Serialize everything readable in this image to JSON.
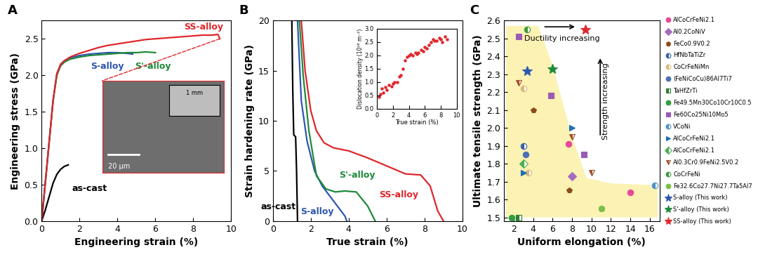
{
  "chart_data": [
    {
      "type": "line",
      "title": "A",
      "x_label": "Engineering strain (%)",
      "y_label": "Engineering stress (GPa)",
      "xlim": [
        0,
        10
      ],
      "ylim": [
        0,
        2.75
      ],
      "xticks": [
        0,
        2,
        4,
        6,
        8,
        10
      ],
      "yticks": [
        {
          "value": 0,
          "label": "0.0"
        },
        0.5,
        {
          "value": 1,
          "label": "1.0"
        },
        1.5,
        {
          "value": 2,
          "label": "2.0"
        },
        2.5
      ],
      "series": [
        {
          "name": "as-cast",
          "color": "#000000",
          "label_at": [
            1.6,
            0.45
          ],
          "x": [
            0,
            0.2,
            0.4,
            0.6,
            0.8,
            1.0,
            1.2,
            1.4
          ],
          "values": [
            0,
            0.16,
            0.34,
            0.52,
            0.64,
            0.71,
            0.75,
            0.77
          ]
        },
        {
          "name": "S-alloy",
          "color": "#2f56b0",
          "label_at": [
            2.6,
            2.12
          ],
          "x": [
            0,
            0.2,
            0.4,
            0.6,
            0.8,
            1.0,
            1.2,
            1.5,
            2.0,
            2.5,
            3.0,
            3.5,
            4.0,
            4.5,
            4.8
          ],
          "values": [
            0,
            0.55,
            1.1,
            1.65,
            2.02,
            2.15,
            2.2,
            2.24,
            2.27,
            2.29,
            2.3,
            2.31,
            2.31,
            2.3,
            2.29
          ]
        },
        {
          "name": "S'-alloy",
          "color": "#1f8a3a",
          "label_at": [
            4.9,
            2.12
          ],
          "x": [
            0,
            0.2,
            0.4,
            0.6,
            0.8,
            1.0,
            1.2,
            1.5,
            2.0,
            2.5,
            3.0,
            3.5,
            4.0,
            4.5,
            5.0,
            5.5,
            6.0
          ],
          "values": [
            0,
            0.55,
            1.1,
            1.65,
            2.0,
            2.13,
            2.18,
            2.22,
            2.25,
            2.27,
            2.28,
            2.29,
            2.3,
            2.31,
            2.31,
            2.32,
            2.31
          ]
        },
        {
          "name": "SS-alloy",
          "color": "#e0262b",
          "label_at": [
            7.5,
            2.66
          ],
          "x": [
            0,
            0.2,
            0.4,
            0.6,
            0.8,
            1.0,
            1.2,
            1.5,
            2.0,
            2.5,
            3.0,
            3.5,
            4.0,
            4.5,
            5.0,
            5.5,
            6.0,
            6.5,
            7.0,
            7.5,
            8.0,
            8.5,
            9.0,
            9.3,
            9.4
          ],
          "values": [
            0,
            0.55,
            1.1,
            1.65,
            2.02,
            2.15,
            2.2,
            2.25,
            2.3,
            2.34,
            2.38,
            2.41,
            2.43,
            2.45,
            2.47,
            2.49,
            2.5,
            2.51,
            2.52,
            2.53,
            2.54,
            2.55,
            2.55,
            2.56,
            2.5
          ]
        }
      ],
      "inset": {
        "type": "image",
        "labels": [
          "20 μm",
          "1 mm"
        ]
      }
    },
    {
      "type": "line",
      "title": "B",
      "x_label": "True strain (%)",
      "y_label": "Strain hardening rate (GPa)",
      "xlim": [
        0,
        10
      ],
      "ylim": [
        0,
        20
      ],
      "xticks": [
        0,
        2,
        4,
        6,
        8,
        10
      ],
      "yticks": [
        0,
        5,
        10,
        15,
        20
      ],
      "series": [
        {
          "name": "as-cast",
          "color": "#000000",
          "label_at": [
            -0.65,
            1.4
          ],
          "x": [
            1.0,
            1.05,
            1.1,
            1.15,
            1.2,
            1.25,
            1.3
          ],
          "values": [
            20,
            13,
            8.6,
            8.5,
            8.4,
            5,
            0
          ]
        },
        {
          "name": "S-alloy",
          "color": "#2f56b0",
          "label_at": [
            1.45,
            0.9
          ],
          "x": [
            1.3,
            1.5,
            1.8,
            2.2,
            2.6,
            3.0,
            3.4,
            3.8,
            3.9
          ],
          "values": [
            20,
            12,
            8,
            5,
            3.5,
            2.5,
            1.5,
            0.5,
            0
          ]
        },
        {
          "name": "S'-alloy",
          "color": "#1f8a3a",
          "label_at": [
            3.5,
            4.6
          ],
          "x": [
            1.4,
            1.6,
            1.9,
            2.3,
            2.8,
            3.3,
            3.8,
            4.4,
            5.0,
            5.4
          ],
          "values": [
            20,
            14.5,
            9,
            4.5,
            3.2,
            2.9,
            3.0,
            2.9,
            1.5,
            0
          ]
        },
        {
          "name": "SS-alloy",
          "color": "#e0262b",
          "label_at": [
            5.6,
            2.6
          ],
          "x": [
            1.5,
            1.7,
            2.0,
            2.3,
            2.7,
            3.2,
            4.0,
            5.0,
            6.0,
            7.0,
            7.8,
            8.3,
            8.7,
            9.0
          ],
          "values": [
            20,
            15,
            11,
            9,
            7.8,
            7.3,
            7.0,
            6.3,
            5.5,
            4.7,
            4.6,
            3.5,
            1.0,
            0
          ]
        }
      ],
      "inset": {
        "type": "scatter",
        "x_label": "True strain (%)",
        "y_label": "Dislocation density (10¹⁶ m⁻²)",
        "xlim": [
          0,
          10
        ],
        "ylim": [
          0,
          3
        ],
        "xticks": [
          0,
          2,
          4,
          6,
          8,
          10
        ],
        "yticks": [
          {
            "value": 0,
            "label": "0.0"
          },
          0.5,
          {
            "value": 1,
            "label": "1.0"
          },
          1.5,
          {
            "value": 2,
            "label": "2.0"
          },
          2.5,
          {
            "value": 3,
            "label": "3.0"
          }
        ],
        "color": "#e0262b",
        "x": [
          0.2,
          0.4,
          0.6,
          0.8,
          1.0,
          1.2,
          1.5,
          1.8,
          2.0,
          2.2,
          2.5,
          2.8,
          3.0,
          3.2,
          3.5,
          3.8,
          4.0,
          4.2,
          4.5,
          4.8,
          5.0,
          5.2,
          5.5,
          5.8,
          6.0,
          6.2,
          6.5,
          6.8,
          7.0,
          7.2,
          7.5,
          7.8,
          8.0,
          8.2,
          8.5,
          8.8
        ],
        "values": [
          0.45,
          0.55,
          0.75,
          0.6,
          0.8,
          0.7,
          0.9,
          0.85,
          0.95,
          1.0,
          1.0,
          1.2,
          1.25,
          1.5,
          1.8,
          1.95,
          2.0,
          2.05,
          2.0,
          2.1,
          2.05,
          2.1,
          2.2,
          2.15,
          2.3,
          2.25,
          2.4,
          2.5,
          2.6,
          2.55,
          2.55,
          2.65,
          2.6,
          2.5,
          2.7,
          2.6
        ]
      }
    },
    {
      "type": "scatter",
      "title": "C",
      "x_label": "Uniform elongation (%)",
      "y_label": "Ultimate tensile strength (GPa)",
      "xlim": [
        1,
        17
      ],
      "ylim": [
        1.48,
        2.6
      ],
      "xticks": [
        2,
        4,
        6,
        8,
        10,
        12,
        14,
        16
      ],
      "yticks": [
        1.5,
        1.6,
        1.7,
        1.8,
        1.9,
        {
          "value": 2,
          "label": "2.0"
        },
        2.1,
        2.2,
        2.3,
        2.4,
        2.5,
        2.6
      ],
      "legend": "right",
      "shaded_region": {
        "color": "#fbf2b4",
        "x": [
          1.2,
          4.5,
          6.0,
          8.0,
          9.5,
          12.0,
          16.8,
          16.8,
          1.2
        ],
        "y": [
          2.57,
          2.57,
          2.35,
          1.95,
          1.72,
          1.69,
          1.68,
          1.5,
          1.5
        ]
      },
      "annotations": [
        {
          "text": "Ductility increasing",
          "x": 7.0,
          "y": 2.5,
          "arrow_from": [
            5.0,
            2.565
          ],
          "arrow_to": [
            8.5,
            2.565
          ]
        },
        {
          "text": "Strength increasing",
          "x": 11.5,
          "y": 2.15,
          "orientation": "vertical",
          "arrow_from": [
            10.9,
            1.95
          ],
          "arrow_to": [
            10.9,
            2.4
          ]
        }
      ],
      "series": [
        {
          "name": "AlCoCrFeNi2.1",
          "color": "#e8479a",
          "marker": "circle",
          "x": [
            7.6,
            14.0
          ],
          "values": [
            1.91,
            1.64
          ]
        },
        {
          "name": "Al0.2CoNiV",
          "color": "#a66bbf",
          "marker": "diamond",
          "x": [
            8.0
          ],
          "values": [
            1.73
          ]
        },
        {
          "name": "FeCo0.9V0.2",
          "color": "#8b4a1a",
          "marker": "pentagon",
          "x": [
            4.0,
            7.7
          ],
          "values": [
            2.1,
            1.65
          ]
        },
        {
          "name": "HfNbTaTiZr",
          "color": "#3a5fa8",
          "marker": "half-circle",
          "x": [
            3.0
          ],
          "values": [
            1.9
          ]
        },
        {
          "name": "CoCrFeNiMn",
          "color": "#d8b77a",
          "marker": "half-circle",
          "x": [
            3.0,
            3.5
          ],
          "values": [
            2.22,
            1.75
          ]
        },
        {
          "name": "(FeNiCoCu)86Al7Ti7",
          "color": "#4a6fb5",
          "marker": "circle",
          "x": [
            3.2
          ],
          "values": [
            1.85
          ]
        },
        {
          "name": "TaHfZrTi",
          "color": "#2e7d32",
          "marker": "half-square",
          "x": [
            2.5
          ],
          "values": [
            1.5
          ]
        },
        {
          "name": "Fe49.5Mn30Co10Cr10C0.5",
          "color": "#2e9e3e",
          "marker": "circle",
          "x": [
            1.8
          ],
          "values": [
            1.5
          ]
        },
        {
          "name": "Fe60Co25Ni10Mo5",
          "color": "#9b59b6",
          "marker": "square",
          "x": [
            2.5,
            5.8,
            9.2
          ],
          "values": [
            2.51,
            2.18,
            1.85
          ]
        },
        {
          "name": "VCoNi",
          "color": "#4a90c8",
          "marker": "half-circle",
          "x": [
            16.5
          ],
          "values": [
            1.68
          ]
        },
        {
          "name": "AlCoCrFeNi2.1",
          "color": "#1f6fb5",
          "marker": "triangle-right",
          "x": [
            8.0,
            3.0
          ],
          "values": [
            2.0,
            1.75
          ]
        },
        {
          "name": "AlCoCrFeNi2.1",
          "color": "#4caf50",
          "marker": "half-diamond",
          "x": [
            3.0
          ],
          "values": [
            1.8
          ]
        },
        {
          "name": "Al0.3Cr0.9FeNi2.5V0.2",
          "color": "#a0522d",
          "marker": "half-triangle-down",
          "x": [
            2.5,
            8.0,
            10.0
          ],
          "values": [
            2.25,
            1.95,
            1.75
          ]
        },
        {
          "name": "CoCrFeNi",
          "color": "#3d9a3d",
          "marker": "half-circle",
          "x": [
            3.4
          ],
          "values": [
            2.55
          ]
        },
        {
          "name": "Fe32.6Co27.7Ni27.7Ta5Al7",
          "color": "#7cbf4a",
          "marker": "circle",
          "x": [
            11.0
          ],
          "values": [
            1.55
          ]
        },
        {
          "name": "S-alloy (This work)",
          "color": "#2f56b0",
          "marker": "star",
          "x": [
            3.4
          ],
          "values": [
            2.32
          ]
        },
        {
          "name": "S'-alloy (This work)",
          "color": "#1f8a3a",
          "marker": "star",
          "x": [
            6.0
          ],
          "values": [
            2.33
          ]
        },
        {
          "name": "SS-alloy (This work)",
          "color": "#e0262b",
          "marker": "star",
          "x": [
            9.4
          ],
          "values": [
            2.55
          ]
        }
      ]
    }
  ]
}
